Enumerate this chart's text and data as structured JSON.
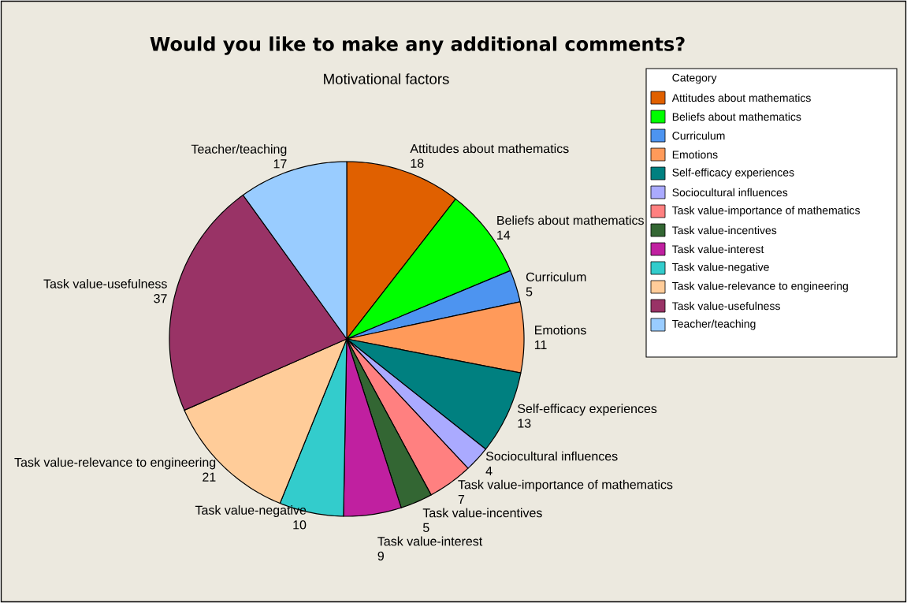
{
  "chart_data": {
    "type": "pie",
    "title": "Would you like to make any additional comments?",
    "subtitle": "Motivational factors",
    "legend_title": "Category",
    "categories": [
      "Attitudes about mathematics",
      "Beliefs about mathematics",
      "Curriculum",
      "Emotions",
      "Self-efficacy experiences",
      "Sociocultural influences",
      "Task value-importance of mathematics",
      "Task value-incentives",
      "Task value-interest",
      "Task value-negative",
      "Task value-relevance to engineering",
      "Task value-usefulness",
      "Teacher/teaching"
    ],
    "values": [
      18,
      14,
      5,
      11,
      13,
      4,
      7,
      5,
      9,
      10,
      21,
      37,
      17
    ],
    "colors": [
      "#e06000",
      "#00ff00",
      "#4d94f0",
      "#ff9a5a",
      "#008080",
      "#aaaaff",
      "#ff8080",
      "#336633",
      "#c020a0",
      "#33cccc",
      "#ffcc99",
      "#993366",
      "#99ccff"
    ],
    "data_labels": true,
    "legend": "top right"
  }
}
